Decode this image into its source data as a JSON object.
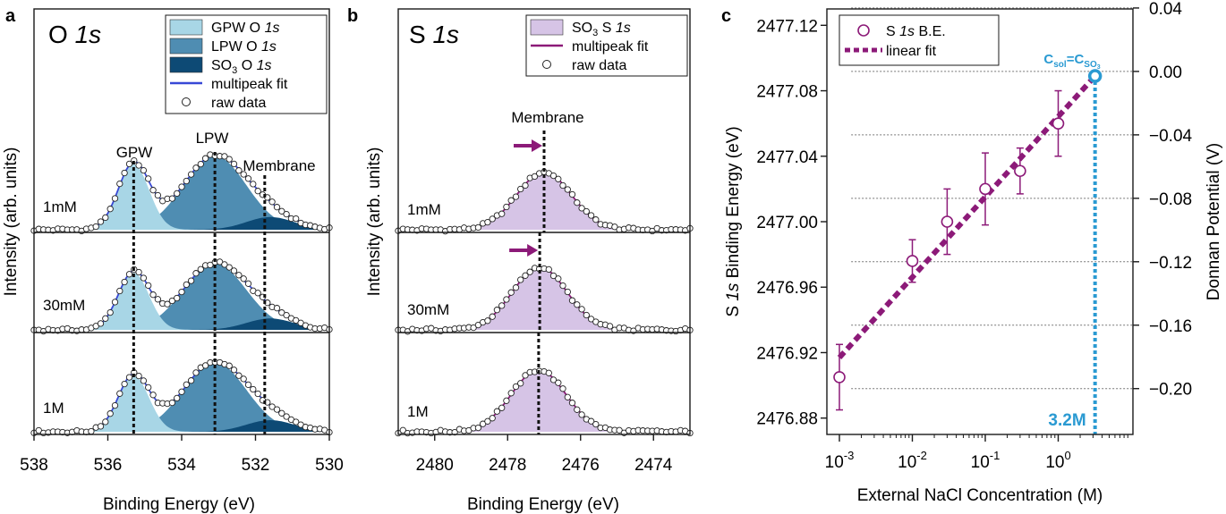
{
  "chart_data": [
    {
      "type": "line",
      "panel_label": "a",
      "title": "O ",
      "title_italic": "1s",
      "xlabel": "Binding Energy (eV)",
      "ylabel": "Intensity (arb. units)",
      "xlim": [
        538,
        530
      ],
      "xticks": [
        538,
        536,
        534,
        532,
        530
      ],
      "legend_position": "top-right",
      "legend": [
        {
          "kind": "area",
          "label": "GPW O ",
          "label_italic": "1s",
          "color": "#a8d6e6"
        },
        {
          "kind": "area",
          "label": "LPW O ",
          "label_italic": "1s",
          "color": "#4f8db2"
        },
        {
          "kind": "area",
          "label": "SO",
          "label_sub": "3",
          "label_suffix": " O ",
          "label_italic": "1s",
          "color": "#0d4a75"
        },
        {
          "kind": "line",
          "label": "multipeak fit",
          "color": "#3848d6"
        },
        {
          "kind": "marker",
          "label": "raw data",
          "color": "#222222"
        }
      ],
      "annotations": [
        "GPW",
        "LPW",
        "Membrane"
      ],
      "reference_lines": [
        535.3,
        533.1,
        531.75
      ],
      "fit_color": "#3848d6",
      "series": [
        {
          "name": "1mM",
          "peaks": [
            {
              "label": "GPW",
              "center": 535.3,
              "sigma": 0.42,
              "height": 0.62,
              "color": "#a8d6e6"
            },
            {
              "label": "LPW",
              "center": 533.1,
              "sigma": 0.85,
              "height": 0.7,
              "color": "#4f8db2"
            },
            {
              "label": "SO3",
              "center": 531.6,
              "sigma": 0.65,
              "height": 0.12,
              "color": "#0d4a75"
            }
          ]
        },
        {
          "name": "30mM",
          "peaks": [
            {
              "label": "GPW",
              "center": 535.3,
              "sigma": 0.42,
              "height": 0.6,
              "color": "#a8d6e6"
            },
            {
              "label": "LPW",
              "center": 533.1,
              "sigma": 0.85,
              "height": 0.7,
              "color": "#4f8db2"
            },
            {
              "label": "SO3",
              "center": 531.6,
              "sigma": 0.65,
              "height": 0.12,
              "color": "#0d4a75"
            }
          ]
        },
        {
          "name": "1M",
          "peaks": [
            {
              "label": "GPW",
              "center": 535.3,
              "sigma": 0.42,
              "height": 0.58,
              "color": "#a8d6e6"
            },
            {
              "label": "LPW",
              "center": 533.1,
              "sigma": 0.85,
              "height": 0.72,
              "color": "#4f8db2"
            },
            {
              "label": "SO3",
              "center": 531.6,
              "sigma": 0.65,
              "height": 0.12,
              "color": "#0d4a75"
            }
          ]
        }
      ]
    },
    {
      "type": "line",
      "panel_label": "b",
      "title": "S ",
      "title_italic": "1s",
      "xlabel": "Binding Energy (eV)",
      "ylabel": "Intensity (arb. units)",
      "xlim": [
        2481,
        2473
      ],
      "xticks": [
        2480,
        2478,
        2476,
        2474
      ],
      "legend_position": "top-right",
      "legend": [
        {
          "kind": "area",
          "label": "SO",
          "label_sub": "3",
          "label_suffix": " S ",
          "label_italic": "1s",
          "color": "#d6c4e6"
        },
        {
          "kind": "line",
          "label": "multipeak fit",
          "color": "#8c1a78"
        },
        {
          "kind": "marker",
          "label": "raw data",
          "color": "#222222"
        }
      ],
      "annotations": [
        "Membrane"
      ],
      "reference_lines": [
        2477.0,
        2477.12,
        2477.15
      ],
      "fit_color": "#8c1a78",
      "series": [
        {
          "name": "1mM",
          "peaks": [
            {
              "label": "SO3",
              "center": 2477.0,
              "sigma": 0.75,
              "height": 0.62,
              "color": "#d6c4e6"
            }
          ]
        },
        {
          "name": "30mM",
          "peaks": [
            {
              "label": "SO3",
              "center": 2477.12,
              "sigma": 0.75,
              "height": 0.66,
              "color": "#d6c4e6"
            }
          ]
        },
        {
          "name": "1M",
          "peaks": [
            {
              "label": "SO3",
              "center": 2477.15,
              "sigma": 0.75,
              "height": 0.64,
              "color": "#d6c4e6"
            }
          ]
        }
      ]
    },
    {
      "type": "scatter",
      "panel_label": "c",
      "xlabel": "External NaCl Concentration (M)",
      "ylabel_pre": "S ",
      "ylabel_italic": "1s",
      "ylabel_post": " Binding Energy (eV)",
      "y2label": "Donnan Potential (V)",
      "x_scale": "log",
      "xlim": [
        0.001,
        10
      ],
      "xticks": [
        {
          "base": "10",
          "exp": "-3",
          "value": 0.001
        },
        {
          "base": "10",
          "exp": "-2",
          "value": 0.01
        },
        {
          "base": "10",
          "exp": "-1",
          "value": 0.1
        },
        {
          "base": "10",
          "exp": "0",
          "value": 1
        }
      ],
      "ylim": [
        2476.87,
        2477.13
      ],
      "yticks": [
        2476.88,
        2476.92,
        2476.96,
        2477.0,
        2477.04,
        2477.08,
        2477.12
      ],
      "ytick_labels": [
        "2476.88",
        "2476.92",
        "2476.96",
        "2477.00",
        "2477.04",
        "2477.08",
        "2477.12"
      ],
      "y2lim": [
        -0.2289,
        0.0394
      ],
      "y2ticks": [
        0.04,
        0.0,
        -0.04,
        -0.08,
        -0.12,
        -0.16,
        -0.2
      ],
      "y2tick_labels": [
        "0.04",
        "0.00",
        "−0.04",
        "−0.08",
        "−0.12",
        "−0.16",
        "−0.20"
      ],
      "grid": "dotted horizontal at right-axis ticks",
      "legend_position": "top-left",
      "legend": [
        {
          "kind": "marker",
          "label_pre": "S ",
          "label_italic": "1s",
          "label_post": " B.E.",
          "color": "#8c1a78"
        },
        {
          "kind": "dashed",
          "label": "linear fit",
          "color": "#8c1a78"
        }
      ],
      "series": [
        {
          "name": "S 1s B.E.",
          "x": [
            0.001,
            0.01,
            0.03,
            0.1,
            0.3,
            1.0
          ],
          "y": [
            2476.905,
            2476.976,
            2477.0,
            2477.02,
            2477.031,
            2477.06
          ],
          "err": [
            0.02,
            0.013,
            0.02,
            0.022,
            0.014,
            0.02
          ]
        },
        {
          "name": "linear fit",
          "x": [
            0.001,
            3.2
          ],
          "y": [
            2476.917,
            2477.089
          ]
        }
      ],
      "marker_color": "#8c1a78",
      "highlight_color": "#2a9ad2",
      "highlight_point": {
        "x": 3.2,
        "y": 2477.089
      },
      "highlight_label": {
        "base": "C",
        "sub1": "sol",
        "eq": "=C",
        "sub2": "SO",
        "sub2b": "3"
      },
      "highlight_value": "3.2M"
    }
  ]
}
